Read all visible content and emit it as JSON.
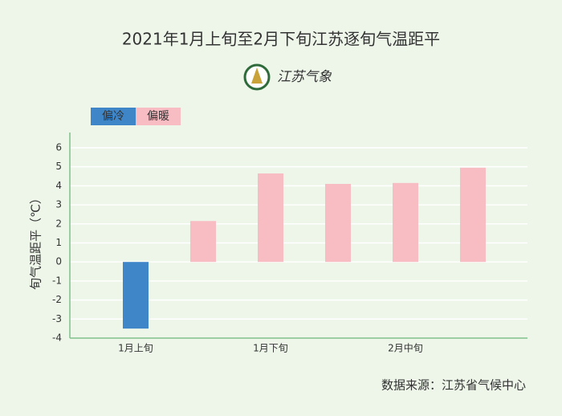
{
  "chart_data": {
    "type": "bar",
    "title": "2021年1月上旬至2月下旬江苏逐旬气温距平",
    "brand": "江苏气象",
    "y_label": "旬气温距平（℃）",
    "source": "数据来源：江苏省气候中心",
    "categories": [
      "1月上旬",
      null,
      "1月下旬",
      null,
      "2月中旬",
      null
    ],
    "values": [
      -3.5,
      2.15,
      4.65,
      4.1,
      4.15,
      4.95
    ],
    "legend": [
      {
        "name": "偏冷",
        "color": "#3f86c9"
      },
      {
        "name": "偏暖",
        "color": "#f8bcc3"
      }
    ],
    "ylim": [
      -4,
      6.8
    ],
    "yticks": [
      -4,
      -3,
      -2,
      -1,
      0,
      1,
      2,
      3,
      4,
      5,
      6
    ],
    "grid": true
  }
}
